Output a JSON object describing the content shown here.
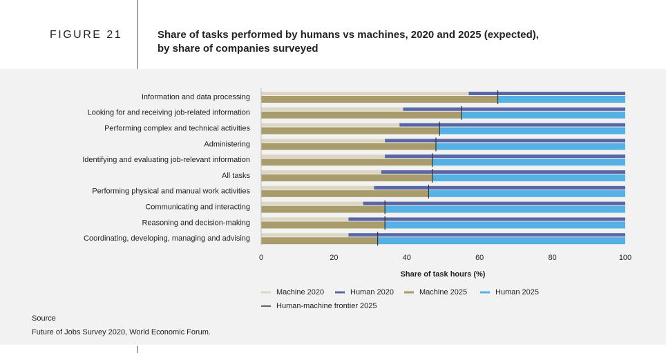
{
  "figure_label": "FIGURE 21",
  "source_heading": "Source",
  "source_text": "Future of Jobs Survey 2020, World Economic Forum.",
  "chart_data": {
    "type": "bar",
    "orientation": "horizontal",
    "title": [
      "Share of tasks performed by humans vs machines, 2020 and 2025 (expected),",
      "by share of companies surveyed"
    ],
    "x_label": "Share of task hours (%)",
    "categories": [
      "Information and data processing",
      "Looking for and receiving job-related information",
      "Performing complex and technical activities",
      "Administering",
      "Identifying and evaluating job-relevant information",
      "All tasks",
      "Performing physical and manual work activities",
      "Communicating and interacting",
      "Reasoning and decision-making",
      "Coordinating, developing, managing and advising"
    ],
    "series": [
      {
        "name": "Machine 2020",
        "color": "#dcd6c2",
        "values": [
          57,
          39,
          38,
          34,
          34,
          33,
          31,
          28,
          24,
          24
        ]
      },
      {
        "name": "Human 2020",
        "color": "#5a67a6",
        "values": [
          43,
          61,
          62,
          66,
          66,
          67,
          69,
          72,
          76,
          76
        ]
      },
      {
        "name": "Machine 2025",
        "color": "#a89b6c",
        "values": [
          65,
          55,
          49,
          48,
          47,
          47,
          46,
          34,
          34,
          32
        ]
      },
      {
        "name": "Human 2025",
        "color": "#55b0e4",
        "values": [
          35,
          45,
          51,
          52,
          53,
          53,
          54,
          66,
          66,
          68
        ]
      },
      {
        "name": "Human-machine frontier 2025",
        "color": "#333333",
        "values": [
          65,
          55,
          49,
          48,
          47,
          47,
          46,
          34,
          34,
          32
        ]
      }
    ],
    "xlim": [
      0,
      100
    ],
    "xticks": [
      0,
      20,
      40,
      60,
      80,
      100
    ],
    "grid": false
  }
}
